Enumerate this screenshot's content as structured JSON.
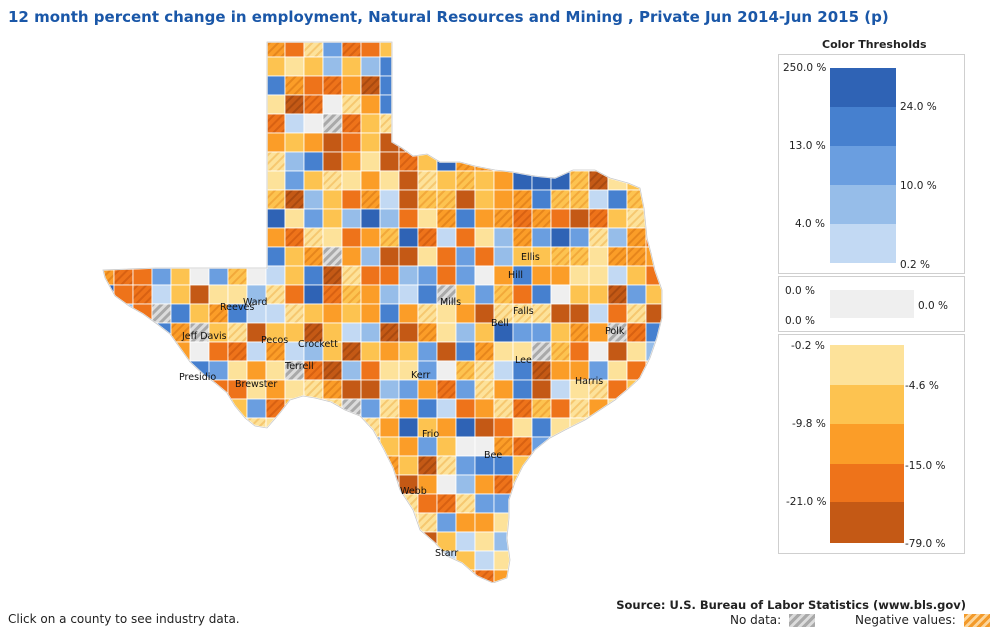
{
  "title": "12 month percent change in employment, Natural Resources and Mining , Private Jun 2014-Jun 2015 (p)",
  "legend": {
    "title": "Color Thresholds",
    "positive": {
      "colors": [
        "#2f63b5",
        "#4680cf",
        "#6a9ee0",
        "#96bde9",
        "#c2d9f3"
      ],
      "left_ticks": [
        "250.0 %",
        "13.0 %",
        "4.0 %"
      ],
      "right_ticks": [
        "24.0 %",
        "10.0 %",
        "0.2 %"
      ]
    },
    "zero": {
      "left_ticks": [
        "0.0 %",
        "0.0 %"
      ],
      "right_tick": "0.0 %",
      "color": "#efefef"
    },
    "negative": {
      "colors": [
        "#fde29a",
        "#fdc350",
        "#fb9d28",
        "#ee731a",
        "#c45915"
      ],
      "left_ticks": [
        "-0.2 %",
        "-9.8 %",
        "-21.0 %"
      ],
      "right_ticks": [
        "-4.6 %",
        "-15.0 %",
        "-79.0 %"
      ]
    }
  },
  "map": {
    "region": "Texas",
    "county_labels": [
      "Ellis",
      "Hill",
      "Reeves",
      "Ward",
      "Mills",
      "Falls",
      "Bell",
      "Jeff Davis",
      "Pecos",
      "Crockett",
      "Polk",
      "Lee",
      "Terrell",
      "Presidio",
      "Brewster",
      "Kerr",
      "Harris",
      "Frio",
      "Bee",
      "Webb",
      "Starr"
    ],
    "colors": {
      "pos1": "#2f63b5",
      "pos2": "#4680cf",
      "pos3": "#6a9ee0",
      "pos4": "#96bde9",
      "pos5": "#c2d9f3",
      "neg1": "#fde29a",
      "neg2": "#fdc350",
      "neg3": "#fb9d28",
      "neg4": "#ee731a",
      "neg5": "#c45915",
      "zero": "#efefef",
      "nodata": "#bdbdbd"
    }
  },
  "footer": {
    "hint": "Click on a county to see industry data.",
    "source": "Source: U.S. Bureau of Labor Statistics (www.bls.gov)",
    "no_data_label": "No data:",
    "negative_label": "Negative values:"
  }
}
